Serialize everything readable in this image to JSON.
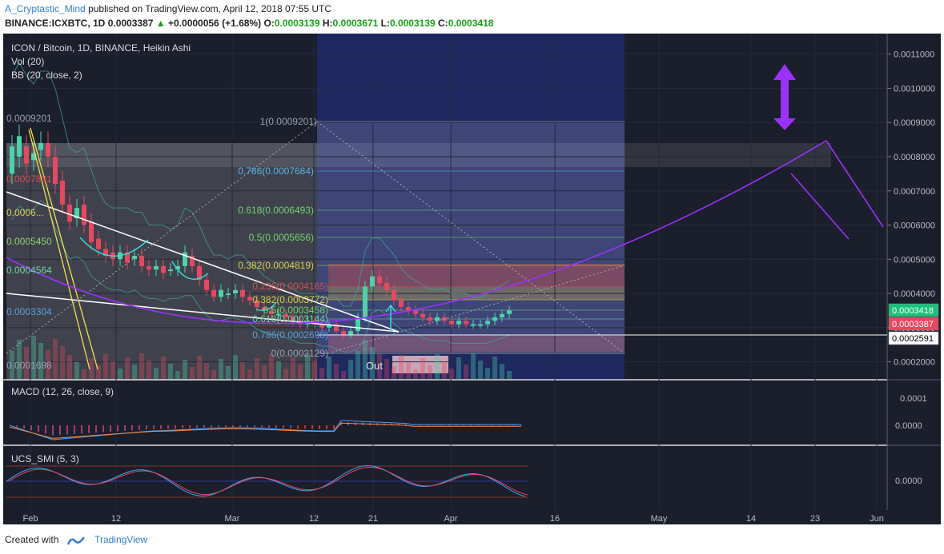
{
  "header": {
    "author": "A_Cryptastic_Mind",
    "published_text": "published on TradingView.com, April 12, 2018 07:55 UTC",
    "symbol": "BINANCE:ICXBTC, 1D",
    "last": "0.0003387",
    "change": "+0.0000056 (+1.68%)",
    "open_label": "O:",
    "open": "0.0003139",
    "high_label": "H:",
    "high": "0.0003671",
    "low_label": "L:",
    "low": "0.0003139",
    "close_label": "C:",
    "close": "0.0003418"
  },
  "legend": {
    "title": "ICON / Bitcoin, 1D, BINANCE, Heikin Ashi",
    "vol": "Vol (20)",
    "bb": "BB (20, close, 2)",
    "macd": "MACD (12, 26, close, 9)",
    "smi": "UCS_SMI (5, 3)"
  },
  "footer": {
    "created": "Created with",
    "brand": "TradingView"
  },
  "colors": {
    "background": "#1b1e2b",
    "up": "#4bd4a8",
    "down": "#e8475f",
    "purple": "#9b30ff",
    "blue_zone": "#1c2558",
    "bb": "#3fa7a0"
  },
  "chart_data": {
    "type": "candlestick",
    "scale": "linear",
    "ylim": [
      0.00015,
      0.00116
    ],
    "y_ticks": [
      "0.0011000",
      "0.0010000",
      "0.0009000",
      "0.0008000",
      "0.0007000",
      "0.0006000",
      "0.0005000",
      "0.0004000",
      "0.0003000",
      "0.0002000"
    ],
    "x_ticks": [
      "Feb",
      "12",
      "Mar",
      "12",
      "21",
      "Apr",
      "16",
      "May",
      "14",
      "23",
      "Jun"
    ],
    "price_badges": [
      {
        "text": "0.0003418",
        "kind": "close"
      },
      {
        "text": "0.0003387",
        "kind": "last"
      },
      {
        "text": "0.0002591",
        "kind": "level"
      }
    ],
    "fib_left": [
      {
        "label": "0.0009201"
      },
      {
        "label": "0.0007831"
      },
      {
        "label": "0.0006..."
      },
      {
        "label": "0.0005450"
      },
      {
        "label": "0.0004564"
      },
      {
        "label": "0.0003304"
      },
      {
        "label": "0.0001698"
      }
    ],
    "fib_right": [
      {
        "label": "1(0.0009201)",
        "value": 0.0009201
      },
      {
        "label": "0.786(0.0007684)",
        "value": 0.0007684
      },
      {
        "label": "0.618(0.0006493)",
        "value": 0.0006493
      },
      {
        "label": "0.5(0.0005656)",
        "value": 0.0005656
      },
      {
        "label": "0.382(0.0004819)",
        "value": 0.0004819
      },
      {
        "label": "0.236(0.0004165)",
        "value": 0.0004165
      },
      {
        "label": "0.382(0.0003772)",
        "value": 0.0003772
      },
      {
        "label": "0.5(0.0003458)",
        "value": 0.0003458
      },
      {
        "label": "0.618(0.0003144)",
        "value": 0.0003144
      },
      {
        "label": "0.786(0.0002698)",
        "value": 0.0002698
      },
      {
        "label": "0(0.0002129)",
        "value": 0.0002129
      }
    ],
    "annotations": [
      "Out"
    ],
    "candles": [
      [
        0.00075,
        0.00083
      ],
      [
        0.0008,
        0.00086
      ],
      [
        0.00083,
        0.00078
      ],
      [
        0.00079,
        0.00081
      ],
      [
        0.00082,
        0.00084
      ],
      [
        0.00084,
        0.0008
      ],
      [
        0.0008,
        0.00072
      ],
      [
        0.00073,
        0.00066
      ],
      [
        0.00066,
        0.00061
      ],
      [
        0.00062,
        0.00065
      ],
      [
        0.00066,
        0.0006
      ],
      [
        0.00061,
        0.00055
      ],
      [
        0.00056,
        0.00053
      ],
      [
        0.00053,
        0.00051
      ],
      [
        0.00052,
        0.0005
      ],
      [
        0.0005,
        0.00052
      ],
      [
        0.00052,
        0.00049
      ],
      [
        0.0005,
        0.00051
      ],
      [
        0.00051,
        0.00048
      ],
      [
        0.00048,
        0.00047
      ],
      [
        0.00047,
        0.00048
      ],
      [
        0.00048,
        0.00046
      ],
      [
        0.00047,
        0.00047
      ],
      [
        0.00047,
        0.00048
      ],
      [
        0.00048,
        0.00052
      ],
      [
        0.00051,
        0.00048
      ],
      [
        0.00048,
        0.00044
      ],
      [
        0.00044,
        0.00041
      ],
      [
        0.00041,
        0.00039
      ],
      [
        0.00039,
        0.00041
      ],
      [
        0.0004,
        0.0004
      ],
      [
        0.0004,
        0.00041
      ],
      [
        0.00041,
        0.00039
      ],
      [
        0.00039,
        0.00038
      ],
      [
        0.00038,
        0.00036
      ],
      [
        0.00036,
        0.00035
      ],
      [
        0.00035,
        0.00034
      ],
      [
        0.00034,
        0.00034
      ],
      [
        0.00034,
        0.00033
      ],
      [
        0.00033,
        0.00032
      ],
      [
        0.00032,
        0.00031
      ],
      [
        0.00031,
        0.00032
      ],
      [
        0.00032,
        0.00031
      ],
      [
        0.00031,
        0.0003
      ],
      [
        0.0003,
        0.00031
      ],
      [
        0.00031,
        0.00029
      ],
      [
        0.00029,
        0.00028
      ],
      [
        0.00028,
        0.00029
      ],
      [
        0.00029,
        0.00033
      ],
      [
        0.00033,
        0.00042
      ],
      [
        0.00042,
        0.00045
      ],
      [
        0.00045,
        0.00043
      ],
      [
        0.00043,
        0.00041
      ],
      [
        0.00041,
        0.00038
      ],
      [
        0.00038,
        0.00036
      ],
      [
        0.00036,
        0.00035
      ],
      [
        0.00035,
        0.00034
      ],
      [
        0.00034,
        0.00033
      ],
      [
        0.00033,
        0.00032
      ],
      [
        0.00032,
        0.00033
      ],
      [
        0.00033,
        0.00032
      ],
      [
        0.00032,
        0.00031
      ],
      [
        0.00031,
        0.00032
      ],
      [
        0.00032,
        0.00031
      ],
      [
        0.00031,
        0.00031
      ],
      [
        0.00031,
        0.00031
      ],
      [
        0.00031,
        0.00032
      ],
      [
        0.00032,
        0.00033
      ],
      [
        0.00033,
        0.00034
      ],
      [
        0.00034,
        0.00035
      ]
    ]
  }
}
